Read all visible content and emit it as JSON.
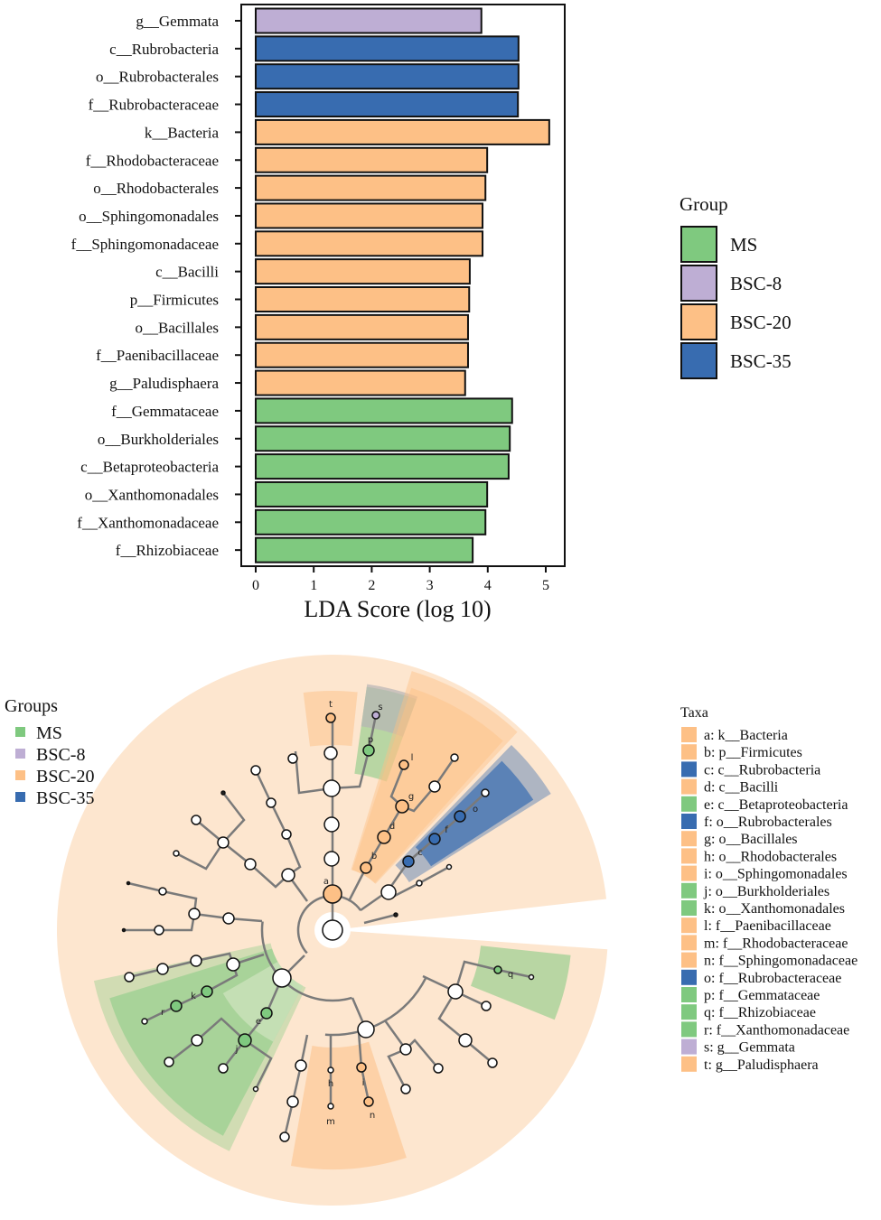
{
  "colors": {
    "MS": "#7fc97f",
    "BSC-8": "#beaed4",
    "BSC-20": "#fdc086",
    "BSC-35": "#386cb0",
    "background": "#fde6cf"
  },
  "chart_data": [
    {
      "type": "bar",
      "orientation": "horizontal",
      "xlabel": "LDA Score (log 10)",
      "xlim": [
        0,
        5.2
      ],
      "xticks": [
        "0",
        "1",
        "2",
        "3",
        "4",
        "5"
      ],
      "legend": {
        "title": "Group",
        "placement": "right",
        "entries": [
          "MS",
          "BSC-8",
          "BSC-20",
          "BSC-35"
        ]
      },
      "categories": [
        "g__Gemmata",
        "c__Rubrobacteria",
        "o__Rubrobacterales",
        "f__Rubrobacteraceae",
        "k__Bacteria",
        "f__Rhodobacteraceae",
        "o__Rhodobacterales",
        "o__Sphingomonadales",
        "f__Sphingomonadaceae",
        "c__Bacilli",
        "p__Firmicutes",
        "o__Bacillales",
        "f__Paenibacillaceae",
        "g__Paludisphaera",
        "f__Gemmataceae",
        "o__Burkholderiales",
        "c__Betaproteobacteria",
        "o__Xanthomonadales",
        "f__Xanthomonadaceae",
        "f__Rhizobiaceae"
      ],
      "values": [
        3.89,
        4.53,
        4.53,
        4.52,
        5.06,
        3.99,
        3.96,
        3.91,
        3.91,
        3.69,
        3.68,
        3.66,
        3.66,
        3.61,
        4.42,
        4.38,
        4.36,
        3.99,
        3.96,
        3.74
      ],
      "groups": [
        "BSC-8",
        "BSC-35",
        "BSC-35",
        "BSC-35",
        "BSC-20",
        "BSC-20",
        "BSC-20",
        "BSC-20",
        "BSC-20",
        "BSC-20",
        "BSC-20",
        "BSC-20",
        "BSC-20",
        "BSC-20",
        "MS",
        "MS",
        "MS",
        "MS",
        "MS",
        "MS"
      ]
    },
    {
      "type": "cladogram",
      "legend": {
        "title": "Groups",
        "placement": "top-left",
        "entries": [
          "MS",
          "BSC-8",
          "BSC-20",
          "BSC-35"
        ]
      },
      "taxa_title": "Taxa",
      "taxa": [
        {
          "letter": "a",
          "label": "a: k__Bacteria",
          "group": "BSC-20"
        },
        {
          "letter": "b",
          "label": "b: p__Firmicutes",
          "group": "BSC-20"
        },
        {
          "letter": "c",
          "label": "c: c__Rubrobacteria",
          "group": "BSC-35"
        },
        {
          "letter": "d",
          "label": "d: c__Bacilli",
          "group": "BSC-20"
        },
        {
          "letter": "e",
          "label": "e: c__Betaproteobacteria",
          "group": "MS"
        },
        {
          "letter": "f",
          "label": "f: o__Rubrobacterales",
          "group": "BSC-35"
        },
        {
          "letter": "g",
          "label": "g: o__Bacillales",
          "group": "BSC-20"
        },
        {
          "letter": "h",
          "label": "h: o__Rhodobacterales",
          "group": "BSC-20"
        },
        {
          "letter": "i",
          "label": "i: o__Sphingomonadales",
          "group": "BSC-20"
        },
        {
          "letter": "j",
          "label": "j: o__Burkholderiales",
          "group": "MS"
        },
        {
          "letter": "k",
          "label": "k: o__Xanthomonadales",
          "group": "MS"
        },
        {
          "letter": "l",
          "label": "l: f__Paenibacillaceae",
          "group": "BSC-20"
        },
        {
          "letter": "m",
          "label": "m: f__Rhodobacteraceae",
          "group": "BSC-20"
        },
        {
          "letter": "n",
          "label": "n: f__Sphingomonadaceae",
          "group": "BSC-20"
        },
        {
          "letter": "o",
          "label": "o: f__Rubrobacteraceae",
          "group": "BSC-35"
        },
        {
          "letter": "p",
          "label": "p: f__Gemmataceae",
          "group": "MS"
        },
        {
          "letter": "q",
          "label": "q: f__Rhizobiaceae",
          "group": "MS"
        },
        {
          "letter": "r",
          "label": "r: f__Xanthomonadaceae",
          "group": "MS"
        },
        {
          "letter": "s",
          "label": "s: g__Gemmata",
          "group": "BSC-8"
        },
        {
          "letter": "t",
          "label": "t: g__Paludisphaera",
          "group": "BSC-20"
        }
      ]
    }
  ]
}
